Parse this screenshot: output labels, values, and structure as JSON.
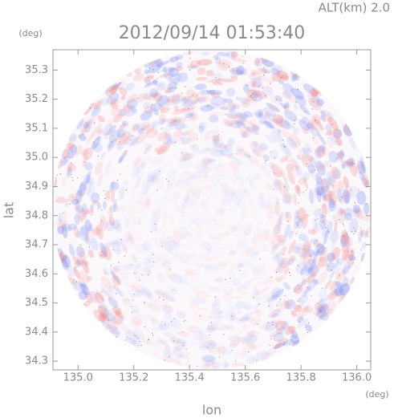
{
  "chart_data": {
    "type": "radar-image",
    "title": "2012/09/14 01:53:40",
    "annotation": "ALT(km) 2.0",
    "x_label": "lon",
    "y_label": "lat",
    "x_unit": "(deg)",
    "y_unit": "(deg)",
    "xlim": [
      134.91,
      136.05
    ],
    "ylim": [
      34.27,
      35.37
    ],
    "xticks": [
      {
        "value": 135,
        "label": "135.0"
      },
      135.2,
      135.4,
      135.6,
      135.8,
      {
        "value": 136,
        "label": "136.0"
      }
    ],
    "yticks": [
      34.3,
      34.4,
      34.5,
      34.6,
      34.7,
      34.8,
      34.9,
      {
        "value": 35,
        "label": "35.0"
      },
      35.1,
      35.2,
      35.3
    ]
  }
}
